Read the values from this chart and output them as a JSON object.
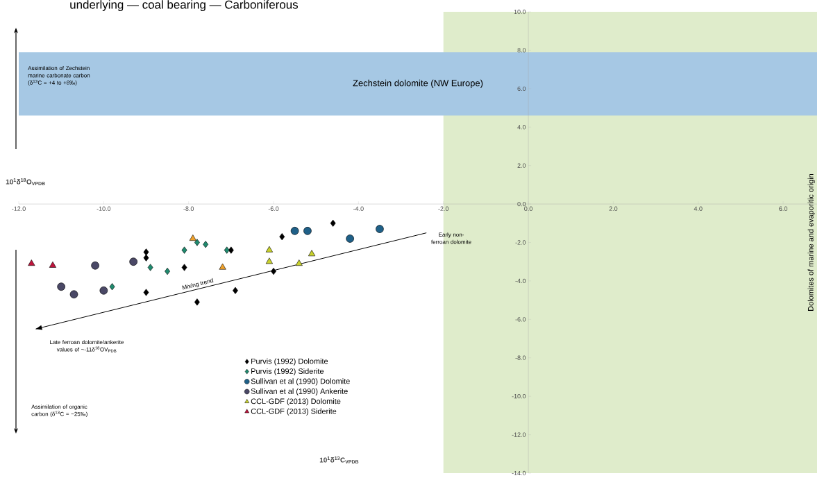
{
  "chart_data": {
    "type": "scatter",
    "title": "underlying — coal bearing — Carboniferous",
    "xlabel": "10$^{1}$δ$^{18}$O$_{VPDB}$",
    "ylabel": "10$^{1}$δ$^{13}$C$_{VPDB}$",
    "xlim": [
      -12,
      6.8
    ],
    "ylim": [
      -14,
      10
    ],
    "xticks": [
      {
        "value": -12,
        "label": "-12.0"
      },
      {
        "value": -10,
        "label": "-10.0"
      },
      {
        "value": -8,
        "label": "-8.0"
      },
      {
        "value": -6,
        "label": "-6.0"
      },
      {
        "value": -4,
        "label": "-4.0"
      },
      {
        "value": -2,
        "label": "-2.0"
      },
      {
        "value": 0,
        "label": "0.0"
      },
      {
        "value": 2,
        "label": "2.0"
      },
      {
        "value": 4,
        "label": "4.0"
      },
      {
        "value": 6,
        "label": "6.0"
      }
    ],
    "yticks": [
      {
        "value": -14,
        "label": "-14.0"
      },
      {
        "value": -12,
        "label": "-12.0"
      },
      {
        "value": -10,
        "label": "-10.0"
      },
      {
        "value": -8,
        "label": "-8.0"
      },
      {
        "value": -6,
        "label": "-6.0"
      },
      {
        "value": -4,
        "label": "-4.0"
      },
      {
        "value": -2,
        "label": "-2.0"
      },
      {
        "value": 0,
        "label": "0.0"
      },
      {
        "value": 2,
        "label": "2.0"
      },
      {
        "value": 4,
        "label": "4.0"
      },
      {
        "value": 6,
        "label": "6.0"
      },
      {
        "value": 8,
        "label": "8.0"
      },
      {
        "value": 10,
        "label": "10.0"
      }
    ],
    "legend": "bottom left",
    "bands": [
      {
        "axis": "x",
        "from": -2.0,
        "to": 6.8,
        "label": "Dolomites of marine and evaporitic origin",
        "color": "#dfeccb"
      },
      {
        "axis": "y",
        "from": 4.6,
        "to": 7.9,
        "label": "Zechstein dolomite (NW Europe)",
        "color": "#a6c8e4"
      }
    ],
    "annotations": [
      "Assimilation of Zechstein marine carbonate carbon (δ$^{13}$C = +4 to +8‰)",
      "Late ferroan dolomite/ankerite values of ~-11δ$^{18}$OV$_{PDB}$",
      "Assimilation of organic carbon (δ$^{13}$C = −25‰)",
      "Early non-ferroan dolomite",
      "Mixing trend"
    ],
    "series": [
      {
        "name": "Purvis (1992) Dolomite",
        "marker": "diamond",
        "color": "#000000",
        "x": [
          -4.6,
          -5.8,
          -9.0,
          -9.0,
          -8.1,
          -9.0,
          -7.8,
          -6.9,
          -6.0,
          -7.0
        ],
        "values": [
          -1.0,
          -1.7,
          -2.5,
          -2.8,
          -3.3,
          -4.6,
          -5.1,
          -4.5,
          -3.5,
          -2.4
        ]
      },
      {
        "name": "Purvis (1992) Siderite",
        "marker": "diamond",
        "color": "#1f8a6e",
        "x": [
          -8.9,
          -8.5,
          -9.8,
          -8.1,
          -7.8,
          -7.6,
          -7.1
        ],
        "values": [
          -3.3,
          -3.5,
          -4.3,
          -2.4,
          -2.0,
          -2.1,
          -2.4
        ]
      },
      {
        "name": "Sullivan et al (1990) Dolomite",
        "marker": "circle",
        "color": "#1f6088",
        "x": [
          -5.5,
          -5.2,
          -4.2,
          -3.5
        ],
        "values": [
          -1.4,
          -1.4,
          -1.8,
          -1.3
        ]
      },
      {
        "name": "Sullivan et al (1990) Ankerite",
        "marker": "circle",
        "color": "#4a4866",
        "x": [
          -10.2,
          -9.3,
          -11.0,
          -10.7,
          -10.0
        ],
        "values": [
          -3.2,
          -3.0,
          -4.3,
          -4.7,
          -4.5
        ]
      },
      {
        "name": "CCL-GDF (2013) Dolomite",
        "marker": "triangle",
        "color": "#c9d22c",
        "colors": [
          "#f0a22c",
          "#f0a22c",
          "#c9d22c",
          "#c9d22c",
          "#c9d22c",
          "#c9d22c"
        ],
        "x": [
          -7.9,
          -7.2,
          -6.1,
          -6.1,
          -5.4,
          -5.1
        ],
        "values": [
          -1.8,
          -3.3,
          -2.4,
          -3.0,
          -3.1,
          -2.6
        ]
      },
      {
        "name": "CCL-GDF (2013) Siderite",
        "marker": "triangle",
        "color": "#c0143c",
        "x": [
          -11.7,
          -11.2
        ],
        "values": [
          -3.1,
          -3.2
        ]
      },
      {
        "type": "line",
        "color": "#000000",
        "line_style": "solid",
        "x": [
          -2.4,
          -11.6
        ],
        "values": [
          -1.5,
          -6.5
        ]
      }
    ]
  }
}
